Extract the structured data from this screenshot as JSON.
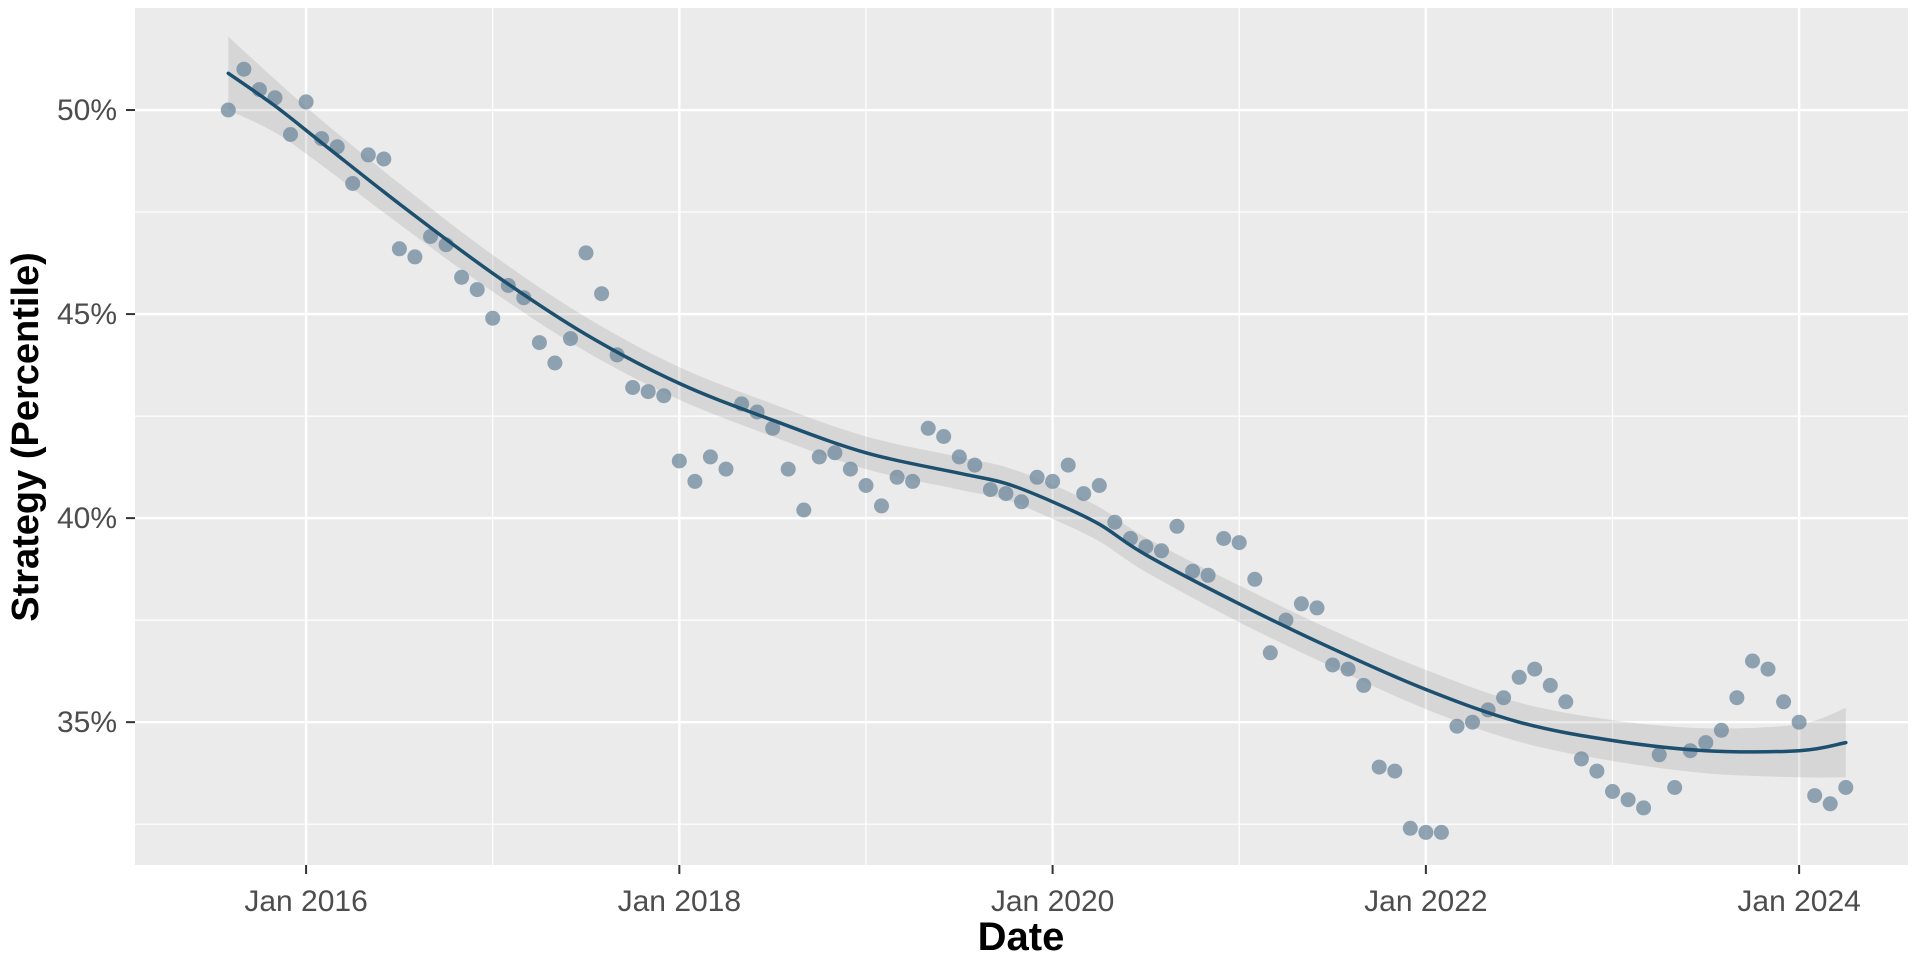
{
  "page": {
    "background": "#FFFFFF"
  },
  "chart_data": {
    "type": "scatter",
    "title": "",
    "xlabel": "Date",
    "ylabel": "Strategy (Percentile)",
    "legend": "none",
    "grid": "on",
    "smoother": "loess_with_confidence_band",
    "xlim": [
      "2015-02",
      "2024-08"
    ],
    "ylim": [
      31.5,
      52.5
    ],
    "x_ticks": [
      [
        "2016-01",
        "Jan 2016"
      ],
      [
        "2018-01",
        "Jan 2018"
      ],
      [
        "2020-01",
        "Jan 2020"
      ],
      [
        "2022-01",
        "Jan 2022"
      ],
      [
        "2024-01",
        "Jan 2024"
      ]
    ],
    "x_minor_ticks": [
      "2017-01",
      "2019-01",
      "2021-01",
      "2023-01"
    ],
    "y_ticks": [
      [
        35,
        "35%"
      ],
      [
        40,
        "40%"
      ],
      [
        45,
        "45%"
      ],
      [
        50,
        "50%"
      ]
    ],
    "y_minor_ticks": [
      32.5,
      37.5,
      42.5,
      47.5,
      52.5
    ],
    "points": [
      [
        "2015-08",
        50.0
      ],
      [
        "2015-09",
        51.0
      ],
      [
        "2015-10",
        50.5
      ],
      [
        "2015-11",
        50.3
      ],
      [
        "2015-12",
        49.4
      ],
      [
        "2016-01",
        50.2
      ],
      [
        "2016-02",
        49.3
      ],
      [
        "2016-03",
        49.1
      ],
      [
        "2016-04",
        48.2
      ],
      [
        "2016-05",
        48.9
      ],
      [
        "2016-06",
        48.8
      ],
      [
        "2016-07",
        46.6
      ],
      [
        "2016-08",
        46.4
      ],
      [
        "2016-09",
        46.9
      ],
      [
        "2016-10",
        46.7
      ],
      [
        "2016-11",
        45.9
      ],
      [
        "2016-12",
        45.6
      ],
      [
        "2017-01",
        44.9
      ],
      [
        "2017-02",
        45.7
      ],
      [
        "2017-03",
        45.4
      ],
      [
        "2017-04",
        44.3
      ],
      [
        "2017-05",
        43.8
      ],
      [
        "2017-06",
        44.4
      ],
      [
        "2017-07",
        46.5
      ],
      [
        "2017-08",
        45.5
      ],
      [
        "2017-09",
        44.0
      ],
      [
        "2017-10",
        43.2
      ],
      [
        "2017-11",
        43.1
      ],
      [
        "2017-12",
        43.0
      ],
      [
        "2018-01",
        41.4
      ],
      [
        "2018-02",
        40.9
      ],
      [
        "2018-03",
        41.5
      ],
      [
        "2018-04",
        41.2
      ],
      [
        "2018-05",
        42.8
      ],
      [
        "2018-06",
        42.6
      ],
      [
        "2018-07",
        42.2
      ],
      [
        "2018-08",
        41.2
      ],
      [
        "2018-09",
        40.2
      ],
      [
        "2018-10",
        41.5
      ],
      [
        "2018-11",
        41.6
      ],
      [
        "2018-12",
        41.2
      ],
      [
        "2019-01",
        40.8
      ],
      [
        "2019-02",
        40.3
      ],
      [
        "2019-03",
        41.0
      ],
      [
        "2019-04",
        40.9
      ],
      [
        "2019-05",
        42.2
      ],
      [
        "2019-06",
        42.0
      ],
      [
        "2019-07",
        41.5
      ],
      [
        "2019-08",
        41.3
      ],
      [
        "2019-09",
        40.7
      ],
      [
        "2019-10",
        40.6
      ],
      [
        "2019-11",
        40.4
      ],
      [
        "2019-12",
        41.0
      ],
      [
        "2020-01",
        40.9
      ],
      [
        "2020-02",
        41.3
      ],
      [
        "2020-03",
        40.6
      ],
      [
        "2020-04",
        40.8
      ],
      [
        "2020-05",
        39.9
      ],
      [
        "2020-06",
        39.5
      ],
      [
        "2020-07",
        39.3
      ],
      [
        "2020-08",
        39.2
      ],
      [
        "2020-09",
        39.8
      ],
      [
        "2020-10",
        38.7
      ],
      [
        "2020-11",
        38.6
      ],
      [
        "2020-12",
        39.5
      ],
      [
        "2021-01",
        39.4
      ],
      [
        "2021-02",
        38.5
      ],
      [
        "2021-03",
        36.7
      ],
      [
        "2021-04",
        37.5
      ],
      [
        "2021-05",
        37.9
      ],
      [
        "2021-06",
        37.8
      ],
      [
        "2021-07",
        36.4
      ],
      [
        "2021-08",
        36.3
      ],
      [
        "2021-09",
        35.9
      ],
      [
        "2021-10",
        33.9
      ],
      [
        "2021-11",
        33.8
      ],
      [
        "2021-12",
        32.4
      ],
      [
        "2022-01",
        32.3
      ],
      [
        "2022-02",
        32.3
      ],
      [
        "2022-03",
        34.9
      ],
      [
        "2022-04",
        35.0
      ],
      [
        "2022-05",
        35.3
      ],
      [
        "2022-06",
        35.6
      ],
      [
        "2022-07",
        36.1
      ],
      [
        "2022-08",
        36.3
      ],
      [
        "2022-09",
        35.9
      ],
      [
        "2022-10",
        35.5
      ],
      [
        "2022-11",
        34.1
      ],
      [
        "2022-12",
        33.8
      ],
      [
        "2023-01",
        33.3
      ],
      [
        "2023-02",
        33.1
      ],
      [
        "2023-03",
        32.9
      ],
      [
        "2023-04",
        34.2
      ],
      [
        "2023-05",
        33.4
      ],
      [
        "2023-06",
        34.3
      ],
      [
        "2023-07",
        34.5
      ],
      [
        "2023-08",
        34.8
      ],
      [
        "2023-09",
        35.6
      ],
      [
        "2023-10",
        36.5
      ],
      [
        "2023-11",
        36.3
      ],
      [
        "2023-12",
        35.5
      ],
      [
        "2024-01",
        35.0
      ],
      [
        "2024-02",
        33.2
      ],
      [
        "2024-03",
        33.0
      ],
      [
        "2024-04",
        33.4
      ]
    ],
    "smooth": [
      [
        "2015-08",
        50.9,
        0.9
      ],
      [
        "2015-11",
        50.1,
        0.65
      ],
      [
        "2016-02",
        49.2,
        0.55
      ],
      [
        "2016-07",
        47.7,
        0.5
      ],
      [
        "2017-01",
        46.0,
        0.45
      ],
      [
        "2017-07",
        44.5,
        0.42
      ],
      [
        "2018-01",
        43.3,
        0.4
      ],
      [
        "2018-07",
        42.4,
        0.4
      ],
      [
        "2019-01",
        41.6,
        0.4
      ],
      [
        "2019-07",
        41.1,
        0.4
      ],
      [
        "2019-10",
        40.85,
        0.4
      ],
      [
        "2020-01",
        40.4,
        0.42
      ],
      [
        "2020-04",
        39.85,
        0.42
      ],
      [
        "2020-07",
        39.1,
        0.42
      ],
      [
        "2021-01",
        37.9,
        0.45
      ],
      [
        "2021-07",
        36.8,
        0.45
      ],
      [
        "2022-01",
        35.8,
        0.48
      ],
      [
        "2022-07",
        35.0,
        0.48
      ],
      [
        "2023-01",
        34.55,
        0.5
      ],
      [
        "2023-07",
        34.3,
        0.55
      ],
      [
        "2024-01",
        34.3,
        0.65
      ],
      [
        "2024-04",
        34.5,
        0.85
      ]
    ],
    "style": {
      "point_radius": 7.5,
      "line_width": 3.5,
      "major_grid_width": 2.4,
      "minor_grid_width": 1.2
    },
    "colors": {
      "panel": "#EBEBEB",
      "grid": "#FFFFFF",
      "point": "#6d889c",
      "line": "#1d4f6e",
      "ribbon": "rgba(110,110,110,0.17)",
      "tick_mark": "#333333",
      "tick_label": "#4D4D4D",
      "axis_title": "#000000"
    }
  }
}
